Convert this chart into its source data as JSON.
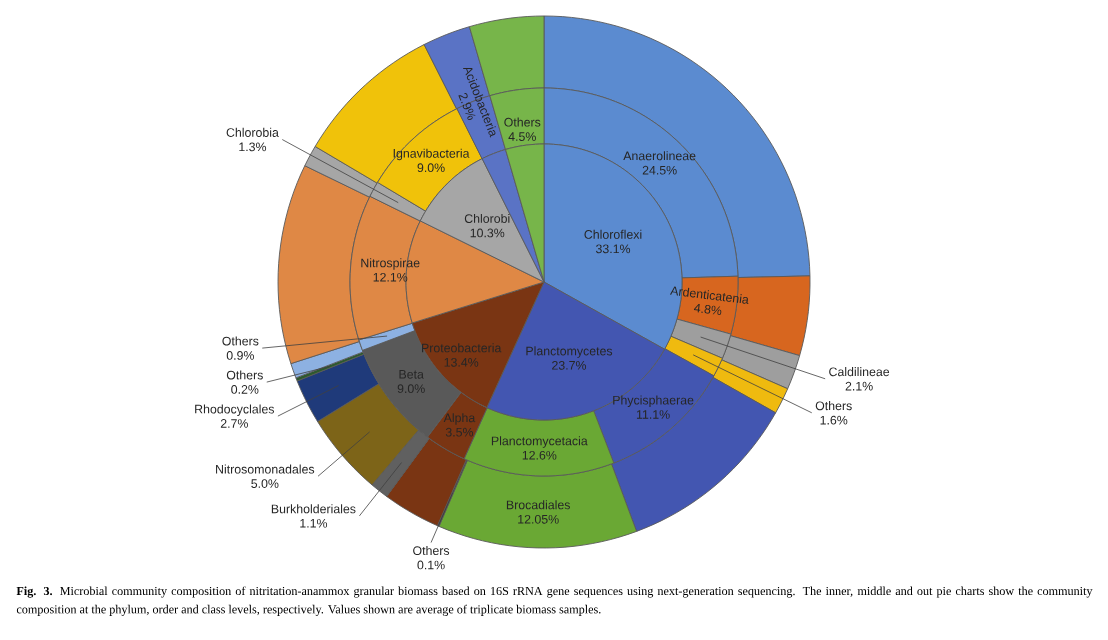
{
  "chart_data": [
    {
      "type": "pie",
      "categories": [
        "Chloroflexi",
        "Planctomycetes",
        "Proteobacteria",
        "Nitrospirae",
        "Chlorobi",
        "Acidobacteria",
        "Others"
      ],
      "values": [
        33.1,
        23.7,
        13.4,
        12.1,
        10.3,
        2.9,
        4.5
      ],
      "value_labels": [
        "33.1%",
        "23.7%",
        "13.4%",
        "12.1%",
        "10.3%",
        "2.9%",
        "4.5%"
      ],
      "colors": [
        "#5b8bd0",
        "#4356b1",
        "#7a3513",
        "#df8845",
        "#a6a6a6",
        "#5a73c5",
        "#77b54a"
      ],
      "annotations": [
        "**Fig. 3.** Microbial community composition of nitritation-anammox granular biomass based on 16S rRNA gene sequences using next-generation sequencing. The inner, middle and out pie charts show the community composition at the phylum, order and class levels, respectively. Values shown are average of triplicate biomass samples."
      ]
    },
    {
      "type": "donut",
      "categories": [
        "Anaerolineae",
        "Ardenticatenia",
        "Caldilineae",
        "Others",
        "Phycisphaerae",
        "Planctomycetacia",
        "Alpha",
        "Beta",
        "Others",
        null,
        "Chlorobia",
        "Ignavibacteria",
        null,
        null
      ],
      "values": [
        24.5,
        4.8,
        2.1,
        1.6,
        11.1,
        12.6,
        3.5,
        9.0,
        0.9,
        12.1,
        1.3,
        9.0,
        2.9,
        4.5
      ],
      "value_labels": [
        "24.5%",
        "4.8%",
        "2.1%",
        "1.6%",
        "11.1%",
        "12.6%",
        "3.5%",
        "9.0%",
        "0.9%",
        null,
        "1.3%",
        "9.0%",
        null,
        null
      ],
      "colors": [
        "#5b8bd0",
        "#d7661f",
        "#9e9e9e",
        "#efba0f",
        "#4356b1",
        "#6aa834",
        "#7a3513",
        "#595959",
        "#8db1e2",
        "#df8845",
        "#a6a6a6",
        "#f0c20a",
        "#5a73c5",
        "#77b54a"
      ]
    },
    {
      "type": "donut",
      "categories": [
        null,
        null,
        null,
        null,
        null,
        "Brocadiales",
        "Others",
        null,
        "Burkholderiales",
        "Nitrosomonadales",
        "Rhodocyclales",
        "Others",
        null,
        null,
        null,
        null,
        null,
        null
      ],
      "values": [
        24.5,
        4.8,
        2.1,
        1.6,
        11.1,
        12.05,
        0.1,
        3.5,
        1.1,
        5.0,
        2.7,
        0.2,
        0.9,
        12.1,
        1.3,
        9.0,
        2.9,
        4.5
      ],
      "value_labels": [
        null,
        null,
        null,
        null,
        null,
        "12.05%",
        "0.1%",
        null,
        "1.1%",
        "5.0%",
        "2.7%",
        "0.2%",
        null,
        null,
        null,
        null,
        null,
        null
      ],
      "colors": [
        "#5b8bd0",
        "#d7661f",
        "#9e9e9e",
        "#efba0f",
        "#4356b1",
        "#6aa834",
        "#404040",
        "#7a3513",
        "#606060",
        "#7d6418",
        "#1f3a7a",
        "#2d5a2d",
        "#8db1e2",
        "#df8845",
        "#a6a6a6",
        "#f0c20a",
        "#5a73c5",
        "#77b54a"
      ]
    }
  ]
}
